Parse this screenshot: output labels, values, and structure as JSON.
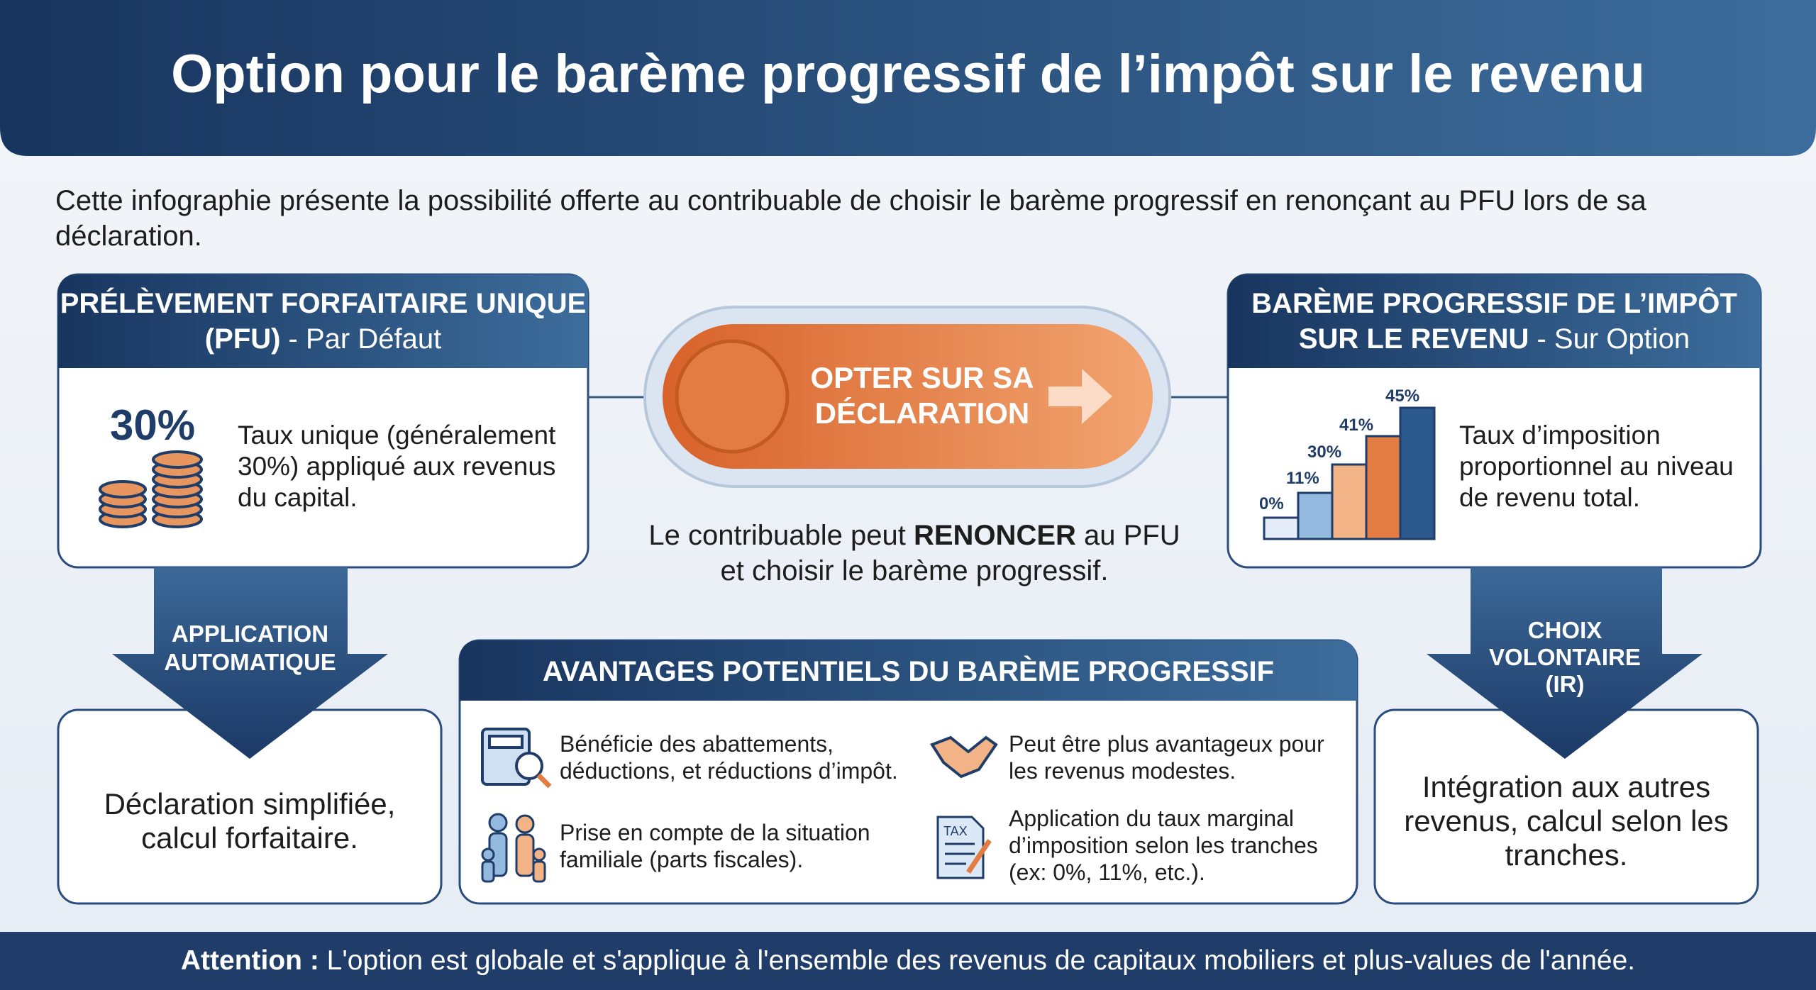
{
  "header": {
    "title": "Option pour le barème progressif de l’impôt sur le revenu"
  },
  "intro": "Cette infographie présente la possibilité offerte au contribuable de choisir le barème progressif en renonçant au PFU lors de sa déclaration.",
  "left_card": {
    "title": "PRÉLÈVEMENT FORFAITAIRE UNIQUE (PFU)",
    "subtitle": "- Par Défaut",
    "rate": "30%",
    "description": "Taux unique (généralement 30%) appliqué aux revenus du capital."
  },
  "button": {
    "label": "OPTER SUR SA DÉCLARATION"
  },
  "center_note": {
    "before": "Le contribuable peut",
    "emphasis": "RENONCER",
    "after": "au PFU et choisir le barème progressif."
  },
  "right_card": {
    "title": "BARÈME PROGRESSIF DE L’IMPÔT SUR LE REVENU",
    "subtitle": "- Sur Option",
    "bracket_labels": [
      "0%",
      "11%",
      "30%",
      "41%",
      "45%"
    ],
    "description": "Taux d’imposition proportionnel au niveau de revenu total."
  },
  "left_arrow": {
    "label": "APPLICATION AUTOMATIQUE"
  },
  "left_result": "Déclaration simplifiée, calcul forfaitaire.",
  "right_arrow": {
    "label": "CHOIX VOLONTAIRE (IR)"
  },
  "right_result": "Intégration aux autres revenus, calcul selon les tranches.",
  "advantages": {
    "title": "AVANTAGES POTENTIELS DU BARÈME PROGRESSIF",
    "items": [
      "Bénéficie des abattements, déductions, et réductions d’impôt.",
      "Peut être plus avantageux pour les revenus modestes.",
      "Prise en compte de la situation familiale (parts fiscales).",
      "Application du taux marginal d’imposition selon les tranches (ex: 0%, 11%, etc.)."
    ],
    "tax_icon_label": "TAX"
  },
  "footer": {
    "label": "Attention :",
    "text": "L'option est globale et s'applique à l'ensemble des revenus de capitaux mobiliers et plus-values de l'année."
  }
}
